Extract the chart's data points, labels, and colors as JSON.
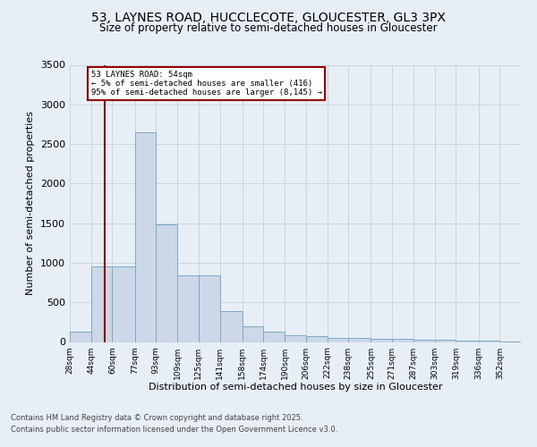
{
  "title1": "53, LAYNES ROAD, HUCCLECOTE, GLOUCESTER, GL3 3PX",
  "title2": "Size of property relative to semi-detached houses in Gloucester",
  "xlabel": "Distribution of semi-detached houses by size in Gloucester",
  "ylabel": "Number of semi-detached properties",
  "footnote1": "Contains HM Land Registry data © Crown copyright and database right 2025.",
  "footnote2": "Contains public sector information licensed under the Open Government Licence v3.0.",
  "annotation_title": "53 LAYNES ROAD: 54sqm",
  "annotation_line1": "← 5% of semi-detached houses are smaller (416)",
  "annotation_line2": "95% of semi-detached houses are larger (8,145) →",
  "property_size": 54,
  "bar_left_edges": [
    28,
    44,
    60,
    77,
    93,
    109,
    125,
    141,
    158,
    174,
    190,
    206,
    222,
    238,
    255,
    271,
    287,
    303,
    319,
    336,
    352
  ],
  "bar_heights": [
    130,
    950,
    950,
    2650,
    1490,
    840,
    840,
    390,
    200,
    130,
    90,
    70,
    55,
    50,
    40,
    35,
    30,
    25,
    20,
    15,
    10
  ],
  "tick_labels": [
    "28sqm",
    "44sqm",
    "60sqm",
    "77sqm",
    "93sqm",
    "109sqm",
    "125sqm",
    "141sqm",
    "158sqm",
    "174sqm",
    "190sqm",
    "206sqm",
    "222sqm",
    "238sqm",
    "255sqm",
    "271sqm",
    "287sqm",
    "303sqm",
    "319sqm",
    "336sqm",
    "352sqm"
  ],
  "bar_color": "#ccd8e8",
  "bar_edge_color": "#7aaac8",
  "red_line_color": "#990000",
  "annotation_box_edgecolor": "#990000",
  "grid_color": "#c8d4e4",
  "background_color": "#e8eef6",
  "ylim": [
    0,
    3500
  ],
  "yticks": [
    0,
    500,
    1000,
    1500,
    2000,
    2500,
    3000,
    3500
  ]
}
